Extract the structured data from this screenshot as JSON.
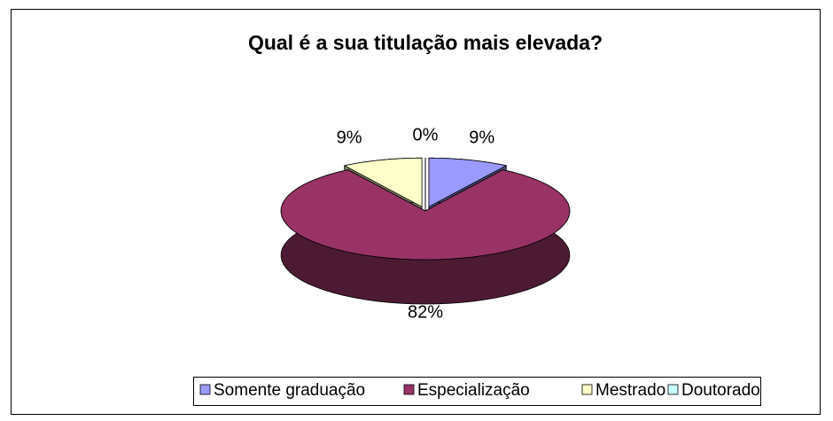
{
  "chart_data": {
    "type": "pie",
    "title": "Qual é a sua titulação mais elevada?",
    "categories": [
      "Somente graduação",
      "Especialização",
      "Mestrado",
      "Doutorado"
    ],
    "values": [
      9,
      82,
      9,
      0
    ],
    "value_labels": [
      "9%",
      "82%",
      "9%",
      "0%"
    ],
    "colors": [
      "#9999ff",
      "#993366",
      "#ffffcc",
      "#ccffff"
    ],
    "legend": "bottom"
  }
}
